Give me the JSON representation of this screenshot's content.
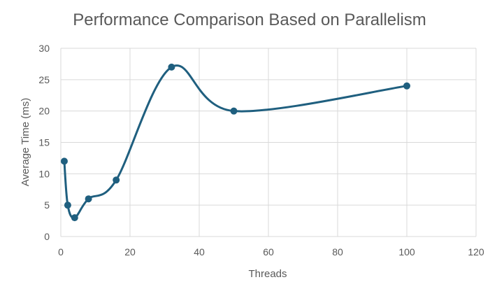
{
  "chart_data": {
    "type": "scatter",
    "title": "Performance Comparison Based on Parallelism",
    "xlabel": "Threads",
    "ylabel": "Average Time (ms)",
    "xlim": [
      0,
      120
    ],
    "ylim": [
      0,
      30
    ],
    "x_ticks": [
      0,
      20,
      40,
      60,
      80,
      100,
      120
    ],
    "y_ticks": [
      0,
      5,
      10,
      15,
      20,
      25,
      30
    ],
    "grid": true,
    "legend": "none",
    "line_style": "smooth",
    "series": [
      {
        "color": "#1f5f7f",
        "points": [
          {
            "x": 1,
            "y": 12
          },
          {
            "x": 2,
            "y": 5
          },
          {
            "x": 4,
            "y": 3
          },
          {
            "x": 8,
            "y": 6
          },
          {
            "x": 16,
            "y": 9
          },
          {
            "x": 32,
            "y": 27
          },
          {
            "x": 50,
            "y": 20
          },
          {
            "x": 100,
            "y": 24
          }
        ]
      }
    ]
  }
}
